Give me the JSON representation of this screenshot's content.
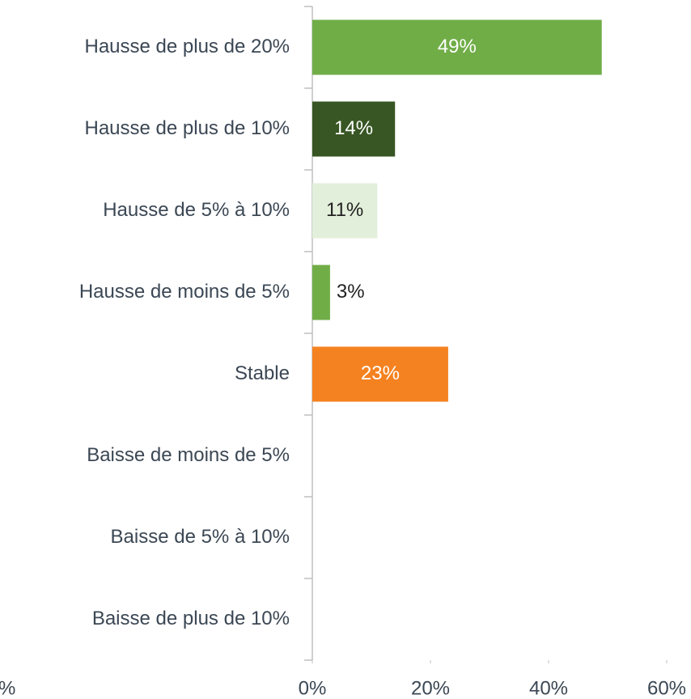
{
  "chart_data": {
    "type": "hbar",
    "categories": [
      "Hausse de plus de 20%",
      "Hausse de plus de 10%",
      "Hausse de 5% à 10%",
      "Hausse de moins de 5%",
      "Stable",
      "Baisse de moins de 5%",
      "Baisse de 5% à 10%",
      "Baisse de plus de 10%"
    ],
    "values": [
      49,
      14,
      11,
      3,
      23,
      null,
      null,
      null
    ],
    "value_labels": [
      "49%",
      "14%",
      "11%",
      "3%",
      "23%",
      null,
      null,
      null
    ],
    "colors": [
      "#70ad47",
      "#375623",
      "#e2efda",
      "#70ad47",
      "#f58220",
      "#70ad47",
      "#70ad47",
      "#70ad47"
    ],
    "label_colors": [
      "#ffffff",
      "#ffffff",
      "#222222",
      "#222222",
      "#ffffff",
      "#222222",
      "#222222",
      "#222222"
    ],
    "xlim": [
      0,
      60
    ],
    "xticks": [
      {
        "value": 0,
        "label": "0%"
      },
      {
        "value": 20,
        "label": "20%"
      },
      {
        "value": 40,
        "label": "40%"
      },
      {
        "value": 60,
        "label": "60%"
      }
    ],
    "annotation": "%"
  }
}
